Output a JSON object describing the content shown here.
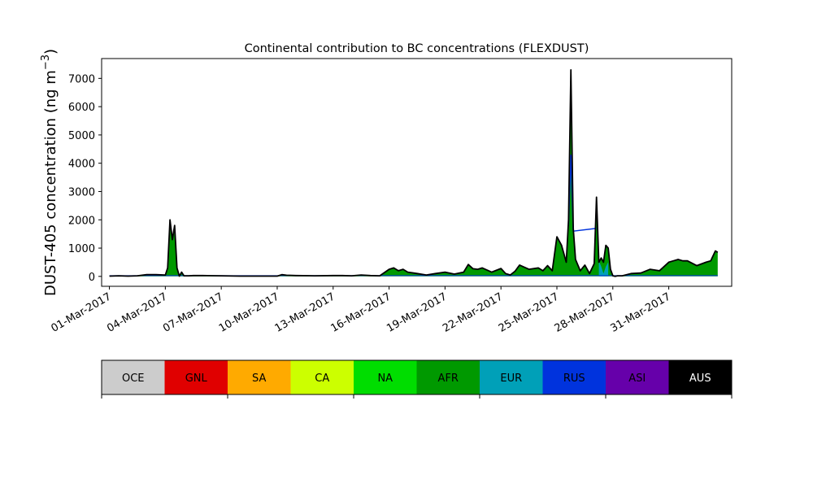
{
  "chart_data": {
    "type": "area",
    "title": "Continental contribution to BC concentrations (FLEXDUST)",
    "ylabel": "DUST-405 concentration (ng m",
    "ylabel_superscript": "−3",
    "ylabel_suffix": ")",
    "ylim": [
      -350,
      7700
    ],
    "yticks": [
      0,
      1000,
      2000,
      3000,
      4000,
      5000,
      6000,
      7000
    ],
    "xlim": [
      "2017-02-28T14:00",
      "2017-04-03T09:00"
    ],
    "xticks": [
      "01-Mar-2017",
      "04-Mar-2017",
      "07-Mar-2017",
      "10-Mar-2017",
      "13-Mar-2017",
      "16-Mar-2017",
      "19-Mar-2017",
      "22-Mar-2017",
      "25-Mar-2017",
      "28-Mar-2017",
      "31-Mar-2017"
    ],
    "xtick_dates": [
      "2017-03-01",
      "2017-03-04",
      "2017-03-07",
      "2017-03-10",
      "2017-03-13",
      "2017-03-16",
      "2017-03-19",
      "2017-03-22",
      "2017-03-25",
      "2017-03-28",
      "2017-03-31"
    ],
    "grid": false,
    "legend_position": "bottom (colorbar)",
    "legend": [
      {
        "label": "OCE",
        "color": "#cccccc",
        "text_color": "#000000"
      },
      {
        "label": "GNL",
        "color": "#e00000",
        "text_color": "#000000"
      },
      {
        "label": "SA",
        "color": "#ffaa00",
        "text_color": "#000000"
      },
      {
        "label": "CA",
        "color": "#ccff00",
        "text_color": "#000000"
      },
      {
        "label": "NA",
        "color": "#00dd00",
        "text_color": "#000000"
      },
      {
        "label": "AFR",
        "color": "#009900",
        "text_color": "#000000"
      },
      {
        "label": "EUR",
        "color": "#00a0b8",
        "text_color": "#000000"
      },
      {
        "label": "RUS",
        "color": "#0033dd",
        "text_color": "#000000"
      },
      {
        "label": "ASI",
        "color": "#6600aa",
        "text_color": "#000000"
      },
      {
        "label": "AUS",
        "color": "#000000",
        "text_color": "#ffffff"
      }
    ],
    "total_series": {
      "name": "AUS",
      "x": [
        "2017-03-01T00:00",
        "2017-03-01T12:00",
        "2017-03-02T00:00",
        "2017-03-02T12:00",
        "2017-03-03T00:00",
        "2017-03-03T12:00",
        "2017-03-04T00:00",
        "2017-03-04T03:00",
        "2017-03-04T06:00",
        "2017-03-04T09:00",
        "2017-03-04T12:00",
        "2017-03-04T15:00",
        "2017-03-04T18:00",
        "2017-03-04T21:00",
        "2017-03-05T00:00",
        "2017-03-05T06:00",
        "2017-03-05T12:00",
        "2017-03-06T00:00",
        "2017-03-07T00:00",
        "2017-03-08T00:00",
        "2017-03-09T00:00",
        "2017-03-10T00:00",
        "2017-03-10T06:00",
        "2017-03-10T12:00",
        "2017-03-11T00:00",
        "2017-03-12T00:00",
        "2017-03-13T00:00",
        "2017-03-13T12:00",
        "2017-03-14T00:00",
        "2017-03-14T12:00",
        "2017-03-15T00:00",
        "2017-03-15T12:00",
        "2017-03-16T00:00",
        "2017-03-16T06:00",
        "2017-03-16T12:00",
        "2017-03-16T18:00",
        "2017-03-17T00:00",
        "2017-03-17T12:00",
        "2017-03-18T00:00",
        "2017-03-18T12:00",
        "2017-03-19T00:00",
        "2017-03-19T12:00",
        "2017-03-20T00:00",
        "2017-03-20T06:00",
        "2017-03-20T12:00",
        "2017-03-20T18:00",
        "2017-03-21T00:00",
        "2017-03-21T12:00",
        "2017-03-22T00:00",
        "2017-03-22T06:00",
        "2017-03-22T12:00",
        "2017-03-22T18:00",
        "2017-03-23T00:00",
        "2017-03-23T12:00",
        "2017-03-24T00:00",
        "2017-03-24T06:00",
        "2017-03-24T12:00",
        "2017-03-24T18:00",
        "2017-03-25T00:00",
        "2017-03-25T06:00",
        "2017-03-25T12:00",
        "2017-03-25T15:00",
        "2017-03-25T18:00",
        "2017-03-25T21:00",
        "2017-03-26T00:00",
        "2017-03-26T06:00",
        "2017-03-26T12:00",
        "2017-03-26T18:00",
        "2017-03-27T00:00",
        "2017-03-27T03:00",
        "2017-03-27T06:00",
        "2017-03-27T09:00",
        "2017-03-27T12:00",
        "2017-03-27T15:00",
        "2017-03-27T18:00",
        "2017-03-27T21:00",
        "2017-03-28T00:00",
        "2017-03-28T03:00",
        "2017-03-28T06:00",
        "2017-03-28T12:00",
        "2017-03-29T00:00",
        "2017-03-29T12:00",
        "2017-03-30T00:00",
        "2017-03-30T12:00",
        "2017-03-31T00:00",
        "2017-03-31T06:00",
        "2017-03-31T12:00",
        "2017-03-31T18:00",
        "2017-04-01T00:00",
        "2017-04-01T12:00",
        "2017-04-02T00:00",
        "2017-04-02T06:00",
        "2017-04-02T12:00",
        "2017-04-02T15:00"
      ],
      "y": [
        10,
        20,
        10,
        20,
        60,
        60,
        50,
        300,
        2000,
        1300,
        1800,
        300,
        10,
        150,
        20,
        20,
        30,
        30,
        20,
        10,
        10,
        10,
        60,
        40,
        30,
        20,
        30,
        30,
        20,
        50,
        30,
        20,
        250,
        300,
        200,
        250,
        150,
        100,
        50,
        100,
        150,
        80,
        150,
        420,
        270,
        250,
        300,
        150,
        280,
        100,
        50,
        180,
        400,
        250,
        300,
        200,
        380,
        200,
        1400,
        1100,
        500,
        2000,
        7300,
        1700,
        600,
        200,
        400,
        100,
        450,
        2800,
        500,
        650,
        500,
        1100,
        1000,
        250,
        20,
        0,
        20,
        20,
        100,
        120,
        250,
        200,
        500,
        550,
        600,
        550,
        550,
        380,
        500,
        550,
        900,
        850
      ]
    },
    "afr_series": {
      "name": "AFR",
      "x": [
        "2017-03-25T15:00",
        "2017-03-25T18:00",
        "2017-03-25T21:00",
        "2017-03-27T03:00"
      ],
      "y": [
        1800,
        4300,
        1600,
        1700
      ]
    },
    "eur_series": {
      "name": "EUR",
      "x": [
        "2017-03-27T06:00",
        "2017-03-27T09:00",
        "2017-03-27T12:00",
        "2017-03-27T15:00",
        "2017-03-27T18:00"
      ],
      "y": [
        550,
        350,
        100,
        350,
        500
      ]
    }
  }
}
